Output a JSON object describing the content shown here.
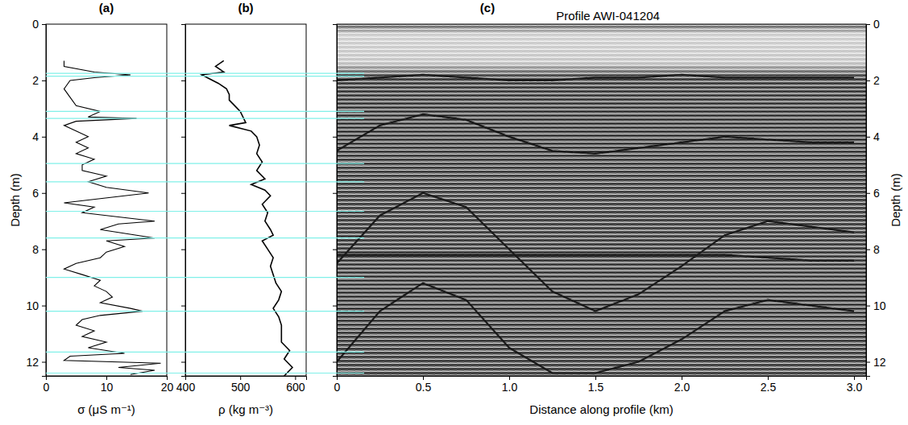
{
  "chart_data": [
    {
      "type": "line",
      "title": "(a)",
      "x_label": "σ (μS m⁻¹)",
      "y_label": "Depth (m)",
      "color": "#000000",
      "xlim": [
        0,
        20
      ],
      "xticks": [
        0,
        10,
        20
      ],
      "ylim": [
        12.5,
        0
      ],
      "yticks": [
        0,
        2,
        4,
        6,
        8,
        10,
        12
      ],
      "y": [
        1.3,
        1.5,
        1.7,
        1.8,
        1.9,
        2.0,
        2.3,
        2.6,
        2.9,
        3.1,
        3.3,
        3.35,
        3.45,
        3.6,
        3.8,
        4.0,
        4.2,
        4.4,
        4.6,
        4.8,
        5.0,
        5.2,
        5.4,
        5.6,
        5.8,
        6.0,
        6.2,
        6.35,
        6.5,
        6.7,
        6.9,
        7.0,
        7.1,
        7.3,
        7.5,
        7.6,
        7.7,
        7.9,
        8.1,
        8.3,
        8.5,
        8.7,
        8.9,
        9.1,
        9.3,
        9.5,
        9.7,
        9.9,
        10.1,
        10.2,
        10.35,
        10.5,
        10.7,
        10.9,
        11.1,
        11.3,
        11.5,
        11.7,
        11.8,
        11.95,
        12.05,
        12.2,
        12.3,
        12.45
      ],
      "x": [
        3,
        3,
        8,
        14,
        8,
        4,
        3,
        4,
        5,
        9,
        7,
        15,
        5,
        3,
        5,
        7,
        5,
        7,
        5,
        8,
        6,
        6,
        10,
        7,
        10,
        17,
        9,
        3,
        8,
        6,
        14,
        18,
        12,
        9,
        15,
        18,
        10,
        13,
        10,
        9,
        5,
        3,
        6,
        9,
        8,
        10,
        11,
        9,
        14,
        16,
        9,
        6,
        5,
        8,
        6,
        10,
        7,
        13,
        4,
        3,
        19,
        12,
        18,
        14
      ]
    },
    {
      "type": "line",
      "title": "(b)",
      "x_label": "ρ (kg m⁻³)",
      "color": "#000000",
      "tick_labels": "x",
      "xlim": [
        400,
        620
      ],
      "xticks": [
        400,
        500,
        600
      ],
      "ylim": [
        12.5,
        0
      ],
      "yticks": [
        0,
        2,
        4,
        6,
        8,
        10,
        12
      ],
      "y": [
        1.3,
        1.5,
        1.7,
        1.8,
        1.9,
        2.1,
        2.3,
        2.5,
        2.7,
        2.9,
        3.1,
        3.3,
        3.5,
        3.6,
        3.8,
        4.0,
        4.3,
        4.6,
        4.9,
        5.2,
        5.5,
        5.7,
        5.9,
        6.1,
        6.4,
        6.7,
        7.0,
        7.3,
        7.5,
        7.7,
        8.0,
        8.3,
        8.6,
        8.9,
        9.2,
        9.5,
        9.8,
        10.1,
        10.4,
        10.7,
        11.0,
        11.3,
        11.6,
        11.9,
        12.2,
        12.5
      ],
      "x": [
        470,
        455,
        470,
        430,
        440,
        460,
        475,
        480,
        480,
        490,
        500,
        505,
        510,
        480,
        520,
        530,
        535,
        530,
        540,
        530,
        545,
        520,
        545,
        555,
        540,
        550,
        545,
        555,
        560,
        540,
        550,
        560,
        555,
        560,
        565,
        575,
        570,
        560,
        570,
        575,
        575,
        575,
        590,
        580,
        595,
        580
      ]
    },
    {
      "type": "line",
      "title": "(c)",
      "subtitle": "Profile AWI-041204",
      "x_label": "Distance along profile (km)",
      "y_label": "Depth (m)",
      "color": "#1a1a1a",
      "xlim": [
        0,
        3.07
      ],
      "xticks": [
        0,
        0.5,
        {
          "value": 1,
          "label": "1.0"
        },
        1.5,
        {
          "value": 2,
          "label": "2.0"
        },
        2.5,
        {
          "value": 3,
          "label": "3.0"
        }
      ],
      "ylim": [
        12.5,
        0
      ],
      "yticks": [
        0,
        2,
        4,
        6,
        8,
        10,
        12
      ],
      "x": [
        0,
        0.25,
        0.5,
        0.75,
        1.0,
        1.25,
        1.5,
        1.75,
        2.0,
        2.25,
        2.5,
        2.75,
        3.0
      ],
      "horizons": [
        {
          "values": [
            2.0,
            1.9,
            1.8,
            1.9,
            2.0,
            2.0,
            1.9,
            1.9,
            1.8,
            1.9,
            1.9,
            1.9,
            1.9
          ]
        },
        {
          "values": [
            4.5,
            3.6,
            3.2,
            3.4,
            4.0,
            4.5,
            4.6,
            4.4,
            4.2,
            4.0,
            4.1,
            4.2,
            4.2
          ]
        },
        {
          "values": [
            8.5,
            6.8,
            6.0,
            6.5,
            8.0,
            9.5,
            10.2,
            9.6,
            8.6,
            7.5,
            7.0,
            7.2,
            7.4
          ]
        },
        {
          "values": [
            12.0,
            10.2,
            9.2,
            9.8,
            11.5,
            12.4,
            12.4,
            12.0,
            11.2,
            10.2,
            9.8,
            10.0,
            10.2
          ]
        },
        {
          "values": [
            8.2,
            8.2,
            8.2,
            8.2,
            8.2,
            8.2,
            8.2,
            8.2,
            8.2,
            8.2,
            8.3,
            8.4,
            8.4
          ]
        }
      ]
    }
  ],
  "reflectors": {
    "color": "#80f0e8",
    "values": [
      1.75,
      1.85,
      3.1,
      3.35,
      4.95,
      5.6,
      6.65,
      7.6,
      9.0,
      10.2,
      11.65,
      12.4
    ]
  }
}
